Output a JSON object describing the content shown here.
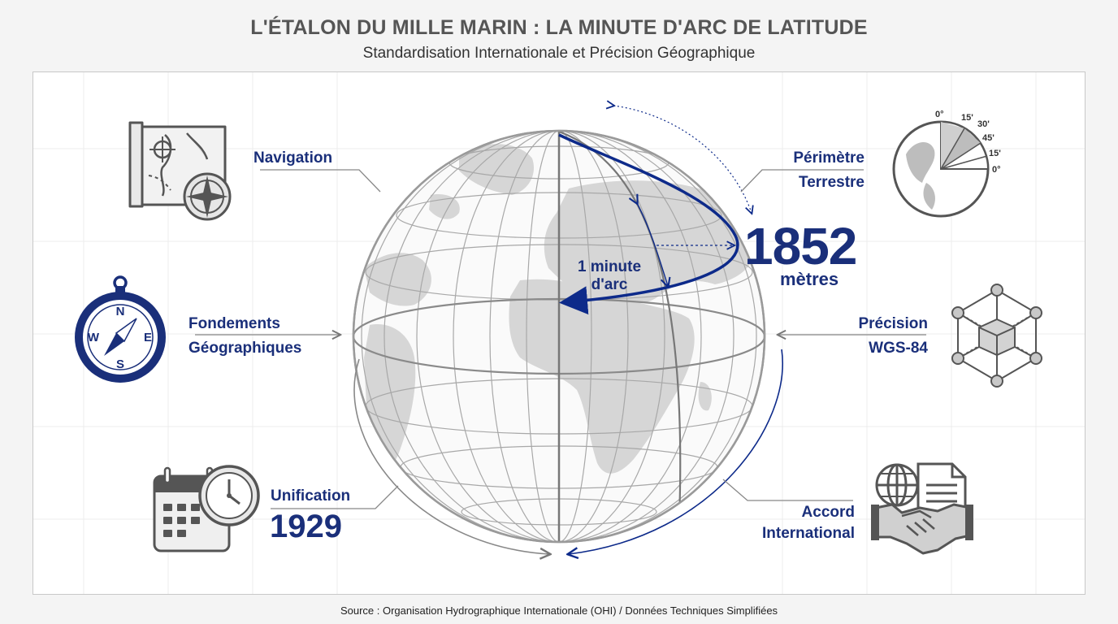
{
  "header": {
    "title": "L'ÉTALON DU MILLE MARIN : LA MINUTE D'ARC DE LATITUDE",
    "subtitle": "Standardisation Internationale et Précision Géographique"
  },
  "labels": {
    "navigation": "Navigation",
    "perimetre_1": "Périmètre",
    "perimetre_2": "Terrestre",
    "fondements_1": "Fondements",
    "fondements_2": "Géographiques",
    "precision_1": "Précision",
    "precision_2": "WGS-84",
    "unification": "Unification",
    "unification_year": "1929",
    "accord_1": "Accord",
    "accord_2": "International"
  },
  "measure": {
    "value": "1852",
    "unit": "mètres",
    "arc_1": "1 minute",
    "arc_2": "d'arc"
  },
  "angle_icon": {
    "ticks": [
      "0°",
      "15'",
      "30'",
      "45'",
      "15'",
      "0°"
    ]
  },
  "compass": {
    "n": "N",
    "s": "S",
    "e": "E",
    "w": "W"
  },
  "footer": {
    "source": "Source : Organisation Hydrographique Internationale (OHI) / Données Techniques Simplifiées"
  },
  "colors": {
    "accent": "#1a2f7a",
    "arc": "#0d2a8a",
    "gray": "#6b6b6b",
    "land": "#d4d4d4"
  }
}
